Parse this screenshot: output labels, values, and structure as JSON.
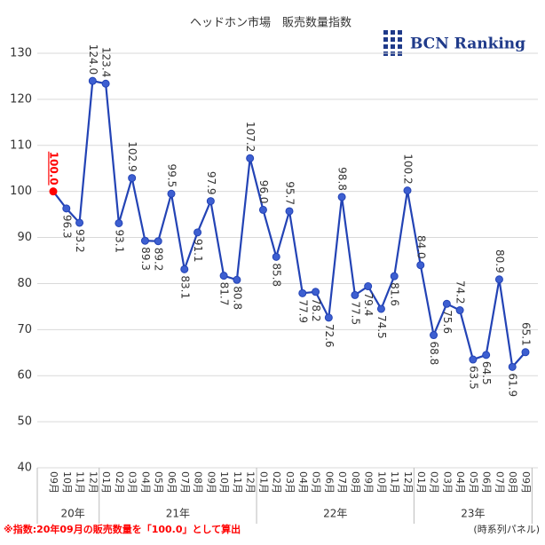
{
  "chart_data": {
    "type": "line",
    "title": "ヘッドホン市場　販売数量指数",
    "logo": "BCN Ranking",
    "note": "※指数:20年09月の販売数量を「100.0」として算出",
    "source": "(時系列パネル)",
    "categories": [
      "09月",
      "10月",
      "11月",
      "12月",
      "01月",
      "02月",
      "03月",
      "04月",
      "05月",
      "06月",
      "07月",
      "08月",
      "09月",
      "10月",
      "11月",
      "12月",
      "01月",
      "02月",
      "03月",
      "04月",
      "05月",
      "06月",
      "07月",
      "08月",
      "09月",
      "10月",
      "11月",
      "12月",
      "01月",
      "02月",
      "03月",
      "04月",
      "05月",
      "06月",
      "07月",
      "08月",
      "09月"
    ],
    "x_groups": [
      {
        "label": "20年",
        "start": 0,
        "end": 3
      },
      {
        "label": "21年",
        "start": 4,
        "end": 15
      },
      {
        "label": "22年",
        "start": 16,
        "end": 27
      },
      {
        "label": "23年",
        "start": 28,
        "end": 36
      }
    ],
    "series": [
      {
        "name": "販売数量指数",
        "color": "#2343b5",
        "values": [
          100.0,
          96.3,
          93.2,
          124.0,
          123.4,
          93.1,
          102.9,
          89.3,
          89.2,
          99.5,
          83.1,
          91.1,
          97.9,
          81.7,
          80.8,
          107.2,
          96.0,
          85.8,
          95.7,
          77.9,
          78.2,
          72.6,
          98.8,
          77.5,
          79.4,
          74.5,
          81.6,
          100.2,
          84.0,
          68.8,
          75.6,
          74.2,
          63.5,
          64.5,
          80.9,
          61.9,
          65.1
        ],
        "value_labels": [
          "100.0",
          "96.3",
          "93.2",
          "124.0",
          "123.4",
          "93.1",
          "102.9",
          "89.3",
          "89.2",
          "99.5",
          "83.1",
          "91.1",
          "97.9",
          "81.7",
          "80.8",
          "107.2",
          "96.0",
          "85.8",
          "95.7",
          "77.9",
          "78.2",
          "72.6",
          "98.8",
          "77.5",
          "79.4",
          "74.5",
          "81.6",
          "100.2",
          "84.0",
          "68.8",
          "75.6",
          "74.2",
          "63.5",
          "64.5",
          "80.9",
          "61.9",
          "65.1"
        ]
      }
    ],
    "highlight_color": "#ff0000",
    "ylim": [
      40,
      130
    ],
    "yticks": [
      40,
      50,
      60,
      70,
      80,
      90,
      100,
      110,
      120,
      130
    ],
    "grid": true
  }
}
